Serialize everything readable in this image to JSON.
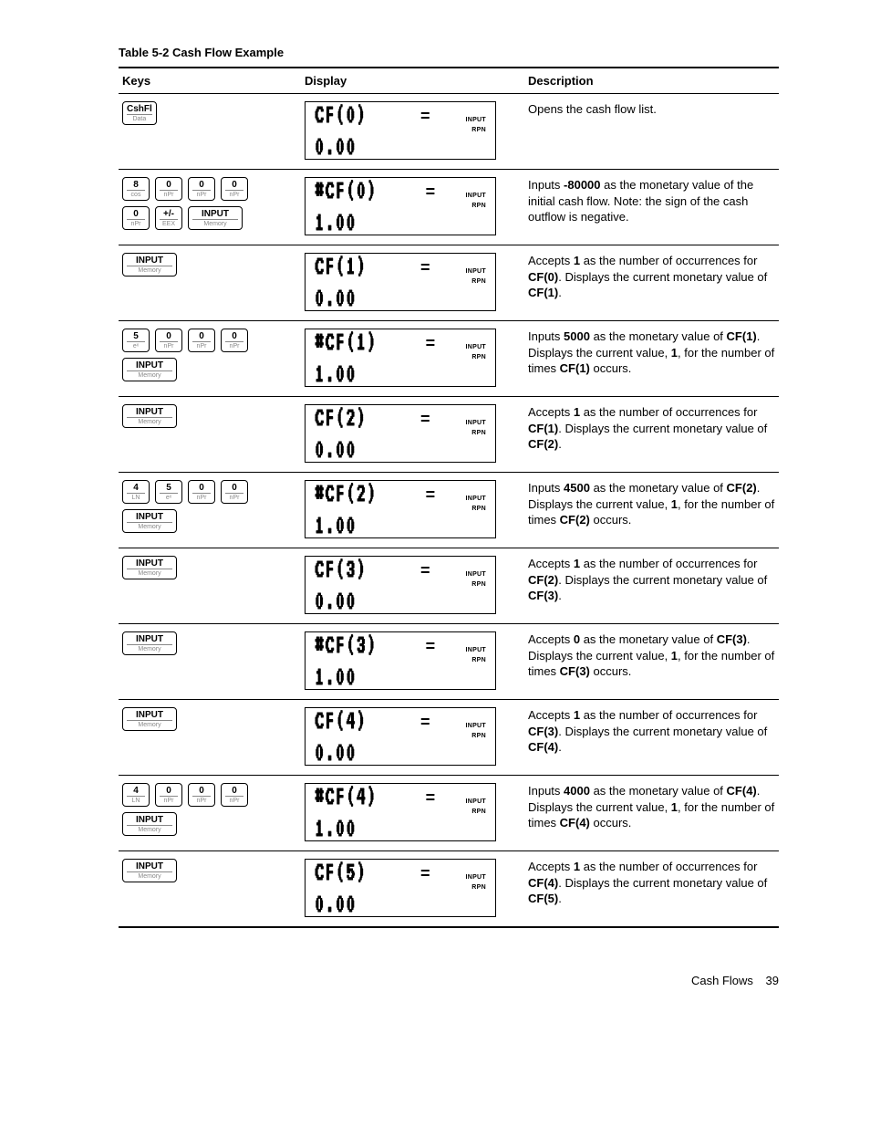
{
  "title": "Table 5-2  Cash Flow Example",
  "headers": {
    "keys": "Keys",
    "display": "Display",
    "description": "Description"
  },
  "annun": {
    "input": "INPUT",
    "rpn": "RPN"
  },
  "footer": {
    "section": "Cash Flows",
    "page": "39"
  },
  "rows": [
    {
      "keys": [
        [
          {
            "top": "CshFl",
            "bot": "Data"
          }
        ]
      ],
      "display": {
        "line1": "CF(0)",
        "eq": "=",
        "line2": "0.00"
      },
      "desc": "Opens the cash flow list."
    },
    {
      "keys": [
        [
          {
            "top": "8",
            "bot": "cos"
          },
          {
            "top": "0",
            "bot": "nPr"
          },
          {
            "top": "0",
            "bot": "nPr"
          },
          {
            "top": "0",
            "bot": "nPr"
          }
        ],
        [
          {
            "top": "0",
            "bot": "nPr"
          },
          {
            "top": "+/-",
            "bot": "EEX"
          },
          {
            "top": "INPUT",
            "bot": "Memory",
            "wide": true
          }
        ]
      ],
      "display": {
        "line1": "#CF(0)",
        "eq": "=",
        "line2": "1.00"
      },
      "desc": "Inputs <b>-80000</b> as the monetary value of the initial cash flow. Note: the sign of the cash outflow is negative."
    },
    {
      "keys": [
        [
          {
            "top": "INPUT",
            "bot": "Memory",
            "wide": true
          }
        ]
      ],
      "display": {
        "line1": "CF(1)",
        "eq": "=",
        "line2": "0.00"
      },
      "desc": "Accepts <b>1</b> as the number of occurrences for <b>CF(0)</b>. Displays the current monetary value of <b>CF(1)</b>."
    },
    {
      "keys": [
        [
          {
            "top": "5",
            "bot": "eˣ"
          },
          {
            "top": "0",
            "bot": "nPr"
          },
          {
            "top": "0",
            "bot": "nPr"
          },
          {
            "top": "0",
            "bot": "nPr"
          }
        ],
        [
          {
            "top": "INPUT",
            "bot": "Memory",
            "wide": true
          }
        ]
      ],
      "display": {
        "line1": "#CF(1)",
        "eq": "=",
        "line2": "1.00"
      },
      "desc": "Inputs <b>5000</b> as the monetary value of <b>CF(1)</b>. Displays the current value, <b>1</b>, for the number of times <b>CF(1)</b> occurs."
    },
    {
      "keys": [
        [
          {
            "top": "INPUT",
            "bot": "Memory",
            "wide": true
          }
        ]
      ],
      "display": {
        "line1": "CF(2)",
        "eq": "=",
        "line2": "0.00"
      },
      "desc": "Accepts <b>1</b> as the number of occurrences for <b>CF(1)</b>. Displays the current monetary value of <b>CF(2)</b>."
    },
    {
      "keys": [
        [
          {
            "top": "4",
            "bot": "LN"
          },
          {
            "top": "5",
            "bot": "eˣ"
          },
          {
            "top": "0",
            "bot": "nPr"
          },
          {
            "top": "0",
            "bot": "nPr"
          }
        ],
        [
          {
            "top": "INPUT",
            "bot": "Memory",
            "wide": true
          }
        ]
      ],
      "display": {
        "line1": "#CF(2)",
        "eq": "=",
        "line2": "1.00"
      },
      "desc": "Inputs <b>4500</b> as the monetary value of <b>CF(2)</b>. Displays the current value, <b>1</b>, for the number of times <b>CF(2)</b> occurs."
    },
    {
      "keys": [
        [
          {
            "top": "INPUT",
            "bot": "Memory",
            "wide": true
          }
        ]
      ],
      "display": {
        "line1": "CF(3)",
        "eq": "=",
        "line2": "0.00"
      },
      "desc": "Accepts <b>1</b> as the number of occurrences for <b>CF(2)</b>. Displays the current monetary value of <b>CF(3)</b>."
    },
    {
      "keys": [
        [
          {
            "top": "INPUT",
            "bot": "Memory",
            "wide": true
          }
        ]
      ],
      "display": {
        "line1": "#CF(3)",
        "eq": "=",
        "line2": "1.00"
      },
      "desc": "Accepts <b>0</b> as the monetary value of <b>CF(3)</b>. Displays the current value, <b>1</b>, for the number of times <b>CF(3)</b> occurs."
    },
    {
      "keys": [
        [
          {
            "top": "INPUT",
            "bot": "Memory",
            "wide": true
          }
        ]
      ],
      "display": {
        "line1": "CF(4)",
        "eq": "=",
        "line2": "0.00"
      },
      "desc": "Accepts <b>1</b> as the number of occurrences for <b>CF(3)</b>. Displays the current monetary value of <b>CF(4)</b>."
    },
    {
      "keys": [
        [
          {
            "top": "4",
            "bot": "LN"
          },
          {
            "top": "0",
            "bot": "nPr"
          },
          {
            "top": "0",
            "bot": "nPr"
          },
          {
            "top": "0",
            "bot": "nPr"
          }
        ],
        [
          {
            "top": "INPUT",
            "bot": "Memory",
            "wide": true
          }
        ]
      ],
      "display": {
        "line1": "#CF(4)",
        "eq": "=",
        "line2": "1.00"
      },
      "desc": "Inputs <b>4000</b> as the monetary value of <b>CF(4)</b>. Displays the current value, <b>1</b>, for the number of times <b>CF(4)</b> occurs."
    },
    {
      "keys": [
        [
          {
            "top": "INPUT",
            "bot": "Memory",
            "wide": true
          }
        ]
      ],
      "display": {
        "line1": "CF(5)",
        "eq": "=",
        "line2": "0.00"
      },
      "desc": "Accepts <b>1</b> as the number of occurrences for <b>CF(4)</b>. Displays the current monetary value of <b>CF(5)</b>."
    }
  ]
}
